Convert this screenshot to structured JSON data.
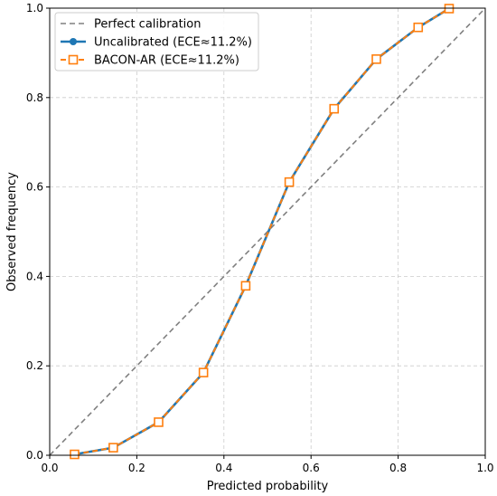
{
  "chart_data": {
    "type": "line",
    "title": "",
    "xlabel": "Predicted probability",
    "ylabel": "Observed frequency",
    "xlim": [
      0.0,
      1.0
    ],
    "ylim": [
      0.0,
      1.0
    ],
    "xticks": [
      0.0,
      0.2,
      0.4,
      0.6,
      0.8,
      1.0
    ],
    "yticks": [
      0.0,
      0.2,
      0.4,
      0.6,
      0.8,
      1.0
    ],
    "xtick_labels": [
      "0.0",
      "0.2",
      "0.4",
      "0.6",
      "0.8",
      "1.0"
    ],
    "ytick_labels": [
      "0.0",
      "0.2",
      "0.4",
      "0.6",
      "0.8",
      "1.0"
    ],
    "grid": true,
    "legend_placement": "top-left",
    "series": [
      {
        "name": "Perfect calibration",
        "style": "dashed",
        "color": "#808080",
        "x": [
          0.0,
          1.0
        ],
        "y": [
          0.0,
          1.0
        ]
      },
      {
        "name": "Uncalibrated (ECE≈11.2%)",
        "style": "solid",
        "marker": "circle",
        "color": "#1f77b4",
        "x": [
          0.057,
          0.146,
          0.25,
          0.353,
          0.45,
          0.55,
          0.653,
          0.75,
          0.846,
          0.917
        ],
        "y": [
          0.002,
          0.017,
          0.074,
          0.185,
          0.379,
          0.611,
          0.775,
          0.886,
          0.957,
          0.999
        ]
      },
      {
        "name": "BACON-AR (ECE≈11.2%)",
        "style": "dashed",
        "marker": "square",
        "color": "#ff7f0e",
        "x": [
          0.057,
          0.146,
          0.25,
          0.353,
          0.45,
          0.55,
          0.653,
          0.75,
          0.846,
          0.917
        ],
        "y": [
          0.002,
          0.017,
          0.074,
          0.185,
          0.379,
          0.611,
          0.775,
          0.886,
          0.957,
          0.999
        ]
      }
    ]
  }
}
